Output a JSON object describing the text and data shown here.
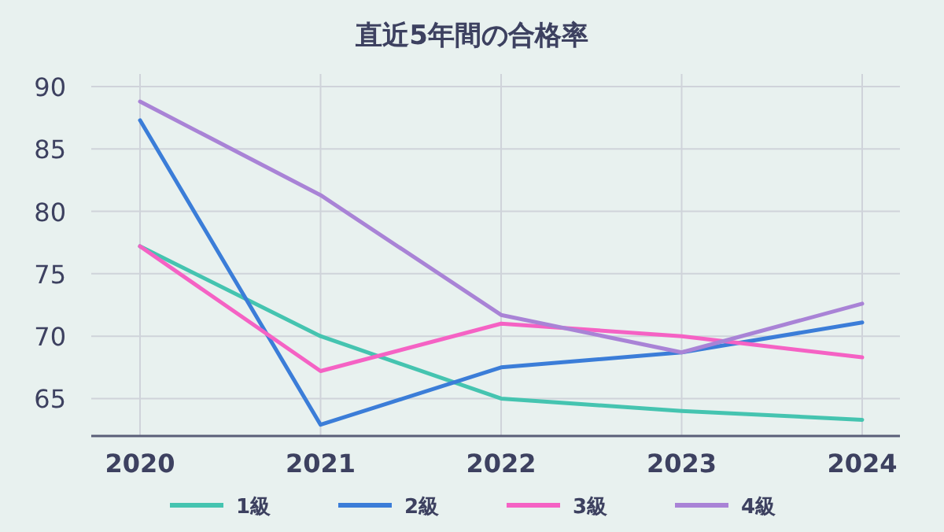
{
  "chart_data": {
    "type": "line",
    "title": "直近5年間の合格率",
    "categories": [
      "2020",
      "2021",
      "2022",
      "2023",
      "2024"
    ],
    "series": [
      {
        "name": "1級",
        "color": "#45c4b0",
        "values": [
          77.2,
          70.0,
          65.0,
          64.0,
          63.3
        ]
      },
      {
        "name": "2級",
        "color": "#3b7dd8",
        "values": [
          87.3,
          62.9,
          67.5,
          68.7,
          71.1
        ]
      },
      {
        "name": "3級",
        "color": "#f562c4",
        "values": [
          77.2,
          67.2,
          71.0,
          70.0,
          68.3
        ]
      },
      {
        "name": "4級",
        "color": "#a983d6",
        "values": [
          88.8,
          81.3,
          71.7,
          68.7,
          72.6
        ]
      }
    ],
    "ylim": [
      62,
      90
    ],
    "yticks": [
      65,
      70,
      75,
      80,
      85,
      90
    ],
    "grid": true,
    "legend": "bottom",
    "marker": "none",
    "line_style": "solid"
  }
}
